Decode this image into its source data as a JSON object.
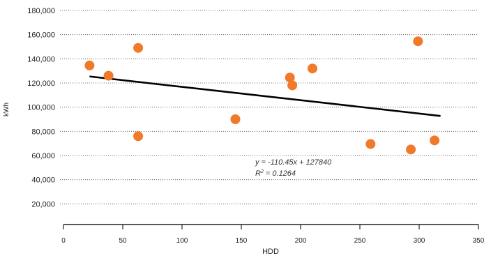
{
  "chart_data": {
    "type": "scatter",
    "title": "",
    "xlabel": "HDD",
    "ylabel": "kWh",
    "xlim": [
      0,
      350
    ],
    "ylim": [
      0,
      180000
    ],
    "x_ticks": [
      0,
      50,
      100,
      150,
      200,
      250,
      300,
      350
    ],
    "x_tick_labels": [
      "0",
      "50",
      "100",
      "150",
      "200",
      "250",
      "300",
      "350"
    ],
    "y_ticks": [
      20000,
      40000,
      60000,
      80000,
      100000,
      120000,
      140000,
      160000,
      180000
    ],
    "y_tick_labels": [
      "20,000",
      "40,000",
      "60,000",
      "80,000",
      "100,000",
      "120,000",
      "140,000",
      "160,000",
      "180,000"
    ],
    "grid": "horizontal-dotted",
    "point_color": "#f07a2a",
    "trendline_color": "#000000",
    "series": [
      {
        "points": [
          {
            "x": 22,
            "y": 134500
          },
          {
            "x": 38,
            "y": 126000
          },
          {
            "x": 63,
            "y": 149000
          },
          {
            "x": 63,
            "y": 76000
          },
          {
            "x": 145,
            "y": 90000
          },
          {
            "x": 191,
            "y": 124500
          },
          {
            "x": 193,
            "y": 118000
          },
          {
            "x": 210,
            "y": 132000
          },
          {
            "x": 259,
            "y": 69500
          },
          {
            "x": 293,
            "y": 65000
          },
          {
            "x": 299,
            "y": 154500
          },
          {
            "x": 313,
            "y": 72500
          }
        ]
      }
    ],
    "trendline": {
      "slope": -110.45,
      "intercept": 127840,
      "x_start": 22,
      "x_end": 318,
      "equation": "y = -110.45x + 127840",
      "r_squared_label": "R",
      "r_squared_sup": "2",
      "r_squared_value": " = 0.1264"
    }
  }
}
